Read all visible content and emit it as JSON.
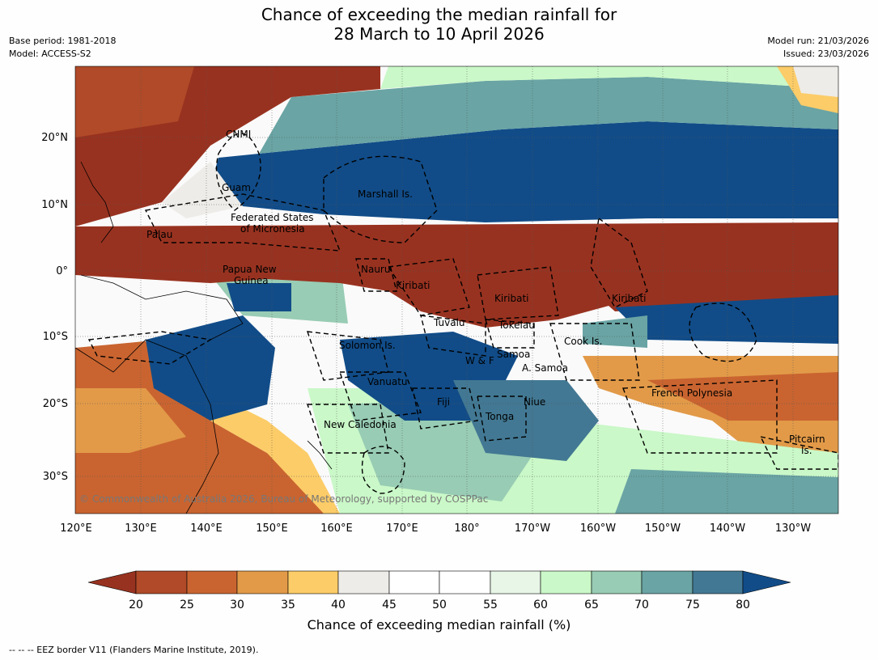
{
  "title_line1": "Chance of exceeding the median rainfall for",
  "title_line2": "28 March to 10 April 2026",
  "base_period": "Base period: 1981-2018",
  "model": "Model: ACCESS-S2",
  "model_run": "Model run: 21/03/2026",
  "issued": "Issued: 23/03/2026",
  "copyright": "© Commonwealth of Australia 2026, Bureau of Meteorology, supported by COSPPac",
  "lat_labels": [
    "20°N",
    "10°N",
    "0°",
    "10°S",
    "20°S",
    "30°S"
  ],
  "lon_labels": [
    "120°E",
    "130°E",
    "140°E",
    "150°E",
    "160°E",
    "170°E",
    "180°",
    "170°W",
    "160°W",
    "150°W",
    "140°W",
    "130°W"
  ],
  "places": [
    "CNMI",
    "Guam",
    "Marshall Is.",
    "Federated States",
    "of Micronesia",
    "Palau",
    "Papua New",
    "Guinea",
    "Nauru",
    "Kiribati",
    "Kiribati",
    "Kiribati",
    "Tuvalu",
    "Tokelau",
    "Solomon Is.",
    "Cook Is.",
    "W & F",
    "Samoa",
    "A. Samoa",
    "Vanuatu",
    "Fiji",
    "Niue",
    "French Polynesia",
    "Tonga",
    "New Caledonia",
    "Pitcairn",
    "Is."
  ],
  "colorbar": {
    "ticks": [
      "20",
      "25",
      "30",
      "35",
      "40",
      "45",
      "50",
      "55",
      "60",
      "65",
      "70",
      "75",
      "80"
    ],
    "colors": {
      "under": "#983220",
      "c20": "#b04a28",
      "c25": "#c96430",
      "c30": "#e29a48",
      "c35": "#fccc68",
      "c40": "#eeece8",
      "c45": "#ffffff",
      "c50": "#ffffff",
      "c55": "#e8f6e8",
      "c60": "#caf8c8",
      "c65": "#98ccb4",
      "c70": "#6aa4a4",
      "c75": "#427893",
      "over": "#114c88"
    }
  },
  "colorbar_label": "Chance of exceeding median rainfall (%)",
  "footer": "--  --  -- EEZ border V11 (Flanders Marine Institute, 2019)."
}
